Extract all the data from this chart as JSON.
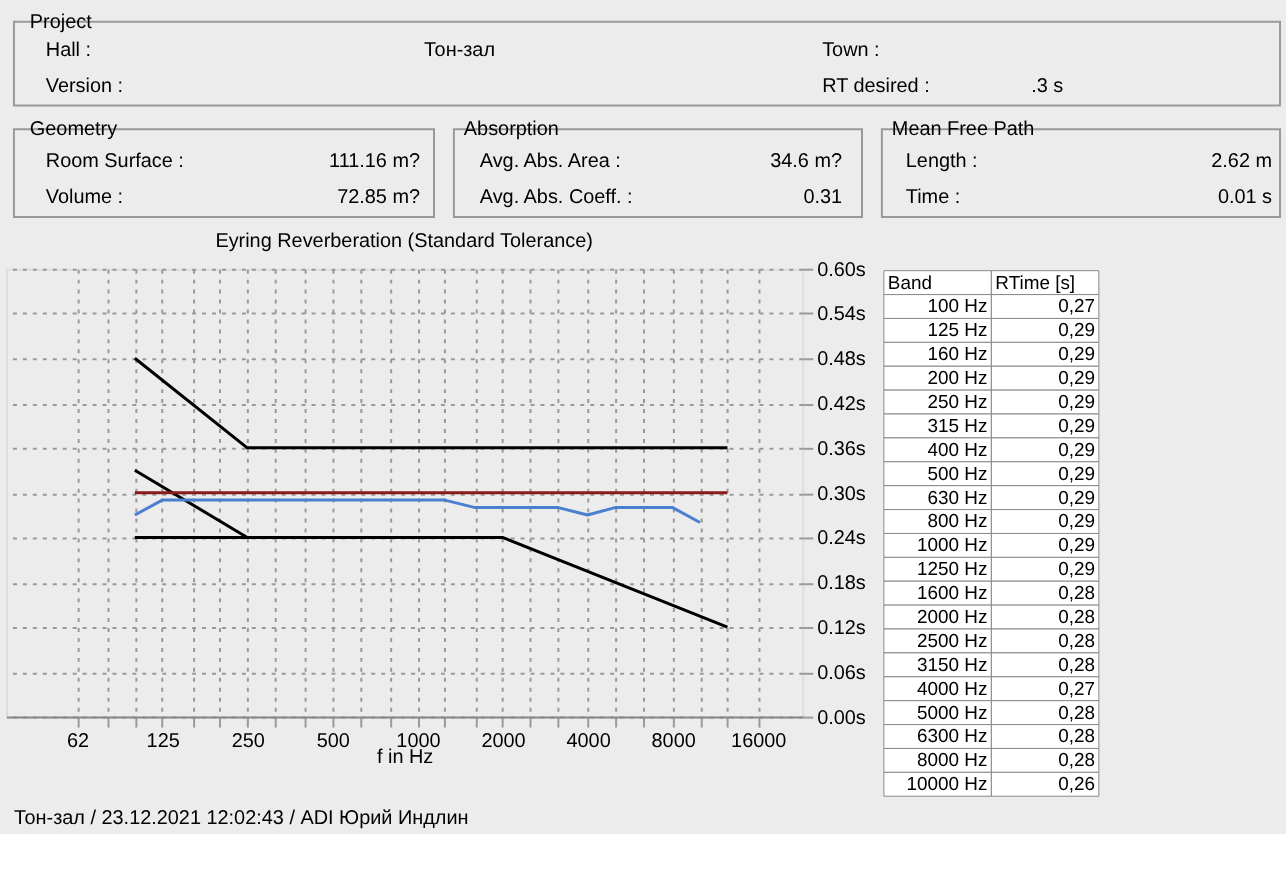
{
  "chart_data": {
    "type": "line",
    "title": "Eyring Reverberation (Standard Tolerance)",
    "xlabel": "f in Hz",
    "log": "x",
    "grid": true,
    "marker": "none",
    "line_style": "solid",
    "xlim": [
      35,
      23000
    ],
    "ylim": [
      0,
      0.6
    ],
    "xticks": [
      {
        "value": 62.5,
        "label": "62"
      },
      {
        "value": 80,
        "label": null
      },
      {
        "value": 100,
        "label": null
      },
      125,
      {
        "value": 160,
        "label": null
      },
      {
        "value": 200,
        "label": null
      },
      250,
      {
        "value": 315,
        "label": null
      },
      {
        "value": 400,
        "label": null
      },
      500,
      {
        "value": 630,
        "label": null
      },
      {
        "value": 800,
        "label": null
      },
      1000,
      {
        "value": 1250,
        "label": null
      },
      {
        "value": 1600,
        "label": null
      },
      2000,
      {
        "value": 2500,
        "label": null
      },
      {
        "value": 3150,
        "label": null
      },
      4000,
      {
        "value": 5000,
        "label": null
      },
      {
        "value": 6300,
        "label": null
      },
      8000,
      {
        "value": 10000,
        "label": null
      },
      {
        "value": 12500,
        "label": null
      },
      16000
    ],
    "yticks": [
      {
        "value": 0,
        "label": "0.00s"
      },
      {
        "value": 0.06,
        "label": "0.06s"
      },
      {
        "value": 0.12,
        "label": "0.12s"
      },
      {
        "value": 0.18,
        "label": "0.18s"
      },
      {
        "value": 0.24,
        "label": "0.24s"
      },
      {
        "value": 0.3,
        "label": "0.30s"
      },
      {
        "value": 0.36,
        "label": "0.36s"
      },
      {
        "value": 0.42,
        "label": "0.42s"
      },
      {
        "value": 0.48,
        "label": "0.48s"
      },
      {
        "value": 0.54,
        "label": "0.54s"
      },
      {
        "value": 0.6,
        "label": "0.60s"
      }
    ],
    "series": [
      {
        "color": "#000000",
        "x": [
          100,
          250,
          12500
        ],
        "values": [
          0.48,
          0.36,
          0.36
        ]
      },
      {
        "color": "#000000",
        "x": [
          100,
          250
        ],
        "values": [
          0.33,
          0.24
        ]
      },
      {
        "color": "#000000",
        "x": [
          100,
          2000,
          12500
        ],
        "values": [
          0.24,
          0.24,
          0.12
        ]
      },
      {
        "color": "#8b1a1a",
        "x": [
          100,
          12500
        ],
        "values": [
          0.3,
          0.3
        ]
      },
      {
        "color": "#4a7fd0",
        "x": [
          100,
          125,
          160,
          200,
          250,
          315,
          400,
          500,
          630,
          800,
          1000,
          1250,
          1600,
          2000,
          2500,
          3150,
          4000,
          5000,
          6300,
          8000,
          10000
        ],
        "values": [
          0.27,
          0.29,
          0.29,
          0.29,
          0.29,
          0.29,
          0.29,
          0.29,
          0.29,
          0.29,
          0.29,
          0.29,
          0.28,
          0.28,
          0.28,
          0.28,
          0.27,
          0.28,
          0.28,
          0.28,
          0.26
        ]
      }
    ],
    "annotations": [
      "Project",
      "Hall :",
      "Тон-зал",
      "Town :",
      "Version :",
      "RT desired :",
      ".3 s",
      "Geometry",
      "Room Surface :",
      "111.16 m?",
      "Volume :",
      "72.85 m?",
      "Absorption",
      "Avg. Abs. Area :",
      "34.6 m?",
      "Avg. Abs. Coeff. :",
      "0.31",
      "Mean Free Path",
      "Length :",
      "2.62 m",
      "Time :",
      "0.01 s",
      "Band",
      "RTime [s]",
      "100 Hz",
      "0,27",
      "125 Hz",
      "0,29",
      "160 Hz",
      "0,29",
      "200 Hz",
      "0,29",
      "250 Hz",
      "0,29",
      "315 Hz",
      "0,29",
      "400 Hz",
      "0,29",
      "500 Hz",
      "0,29",
      "630 Hz",
      "0,29",
      "800 Hz",
      "0,29",
      "1000 Hz",
      "0,29",
      "1250 Hz",
      "0,29",
      "1600 Hz",
      "0,28",
      "2000 Hz",
      "0,28",
      "2500 Hz",
      "0,28",
      "3150 Hz",
      "0,28",
      "4000 Hz",
      "0,27",
      "5000 Hz",
      "0,28",
      "6300 Hz",
      "0,28",
      "8000 Hz",
      "0,28",
      "10000 Hz",
      "0,26",
      "Тон-зал / 23.12.2021 12:02:43 / ADI Юрий Индлин"
    ]
  }
}
